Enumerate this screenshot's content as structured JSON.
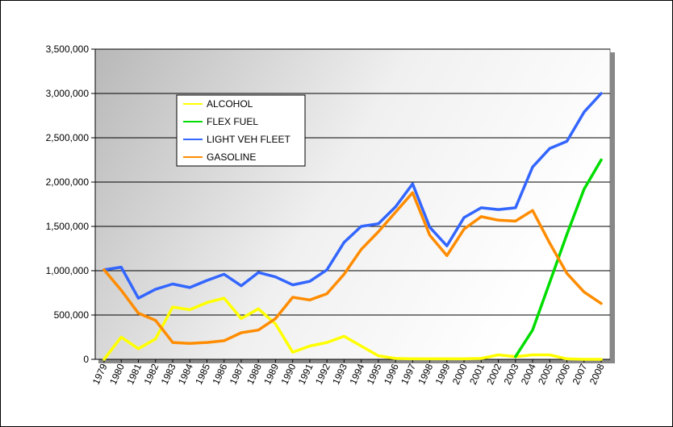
{
  "chart_data": {
    "type": "line",
    "title": "",
    "xlabel": "",
    "ylabel": "",
    "ylim": [
      0,
      3500000
    ],
    "y_ticks": [
      "0",
      "500,000",
      "1,000,000",
      "1,500,000",
      "2,000,000",
      "2,500,000",
      "3,000,000",
      "3,500,000"
    ],
    "grid": "horizontal",
    "legend_position": "top-left inside",
    "categories": [
      "1979",
      "1980",
      "1981",
      "1982",
      "1983",
      "1984",
      "1985",
      "1986",
      "1987",
      "1988",
      "1989",
      "1990",
      "1991",
      "1992",
      "1993",
      "1994",
      "1995",
      "1996",
      "1997",
      "1998",
      "1999",
      "2000",
      "2001",
      "2002",
      "2003",
      "2004",
      "2005",
      "2006",
      "2007",
      "2008"
    ],
    "series": [
      {
        "name": "ALCOHOL",
        "color": "#ffff00",
        "values": [
          0,
          250000,
          120000,
          230000,
          590000,
          560000,
          640000,
          690000,
          460000,
          570000,
          400000,
          80000,
          150000,
          190000,
          260000,
          150000,
          40000,
          10000,
          5000,
          5000,
          5000,
          5000,
          10000,
          50000,
          30000,
          50000,
          50000,
          5000,
          0,
          0
        ]
      },
      {
        "name": "FLEX FUEL",
        "color": "#00dd00",
        "values": [
          null,
          null,
          null,
          null,
          null,
          null,
          null,
          null,
          null,
          null,
          null,
          null,
          null,
          null,
          null,
          null,
          null,
          null,
          null,
          null,
          null,
          null,
          null,
          null,
          30000,
          330000,
          870000,
          1410000,
          1920000,
          2250000
        ]
      },
      {
        "name": "LIGHT VEH FLEET",
        "color": "#3366ff",
        "values": [
          1010000,
          1040000,
          690000,
          790000,
          850000,
          810000,
          890000,
          960000,
          830000,
          980000,
          930000,
          840000,
          880000,
          1010000,
          1320000,
          1500000,
          1530000,
          1720000,
          1980000,
          1490000,
          1280000,
          1600000,
          1710000,
          1690000,
          1710000,
          2170000,
          2380000,
          2460000,
          2790000,
          3000000
        ]
      },
      {
        "name": "GASOLINE",
        "color": "#ff8c00",
        "values": [
          1010000,
          780000,
          520000,
          440000,
          190000,
          180000,
          190000,
          210000,
          300000,
          330000,
          460000,
          700000,
          670000,
          740000,
          960000,
          1240000,
          1440000,
          1660000,
          1880000,
          1400000,
          1170000,
          1470000,
          1610000,
          1570000,
          1560000,
          1680000,
          1310000,
          970000,
          760000,
          630000
        ]
      }
    ]
  }
}
